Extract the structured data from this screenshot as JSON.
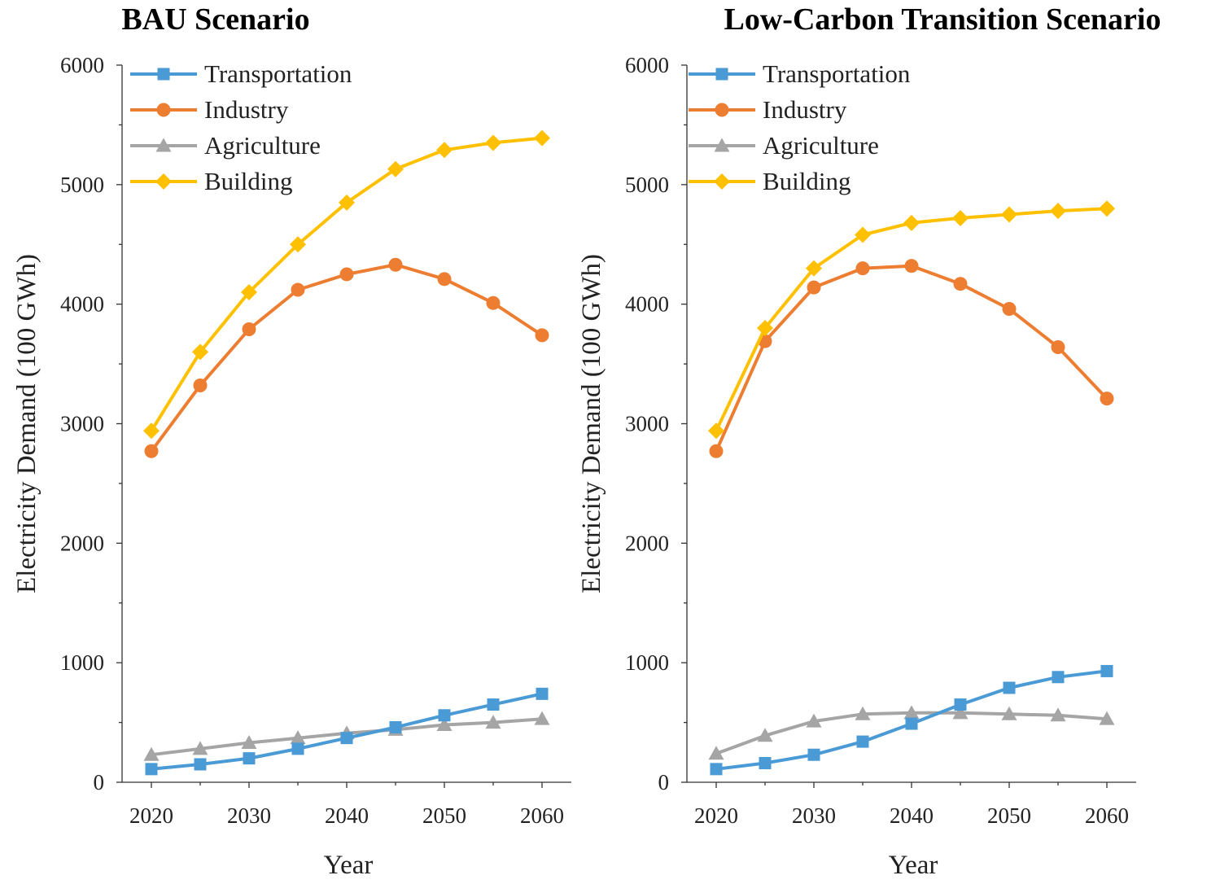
{
  "chart_data": [
    {
      "type": "line",
      "title": "BAU Scenario",
      "xlabel": "Year",
      "ylabel": "Electricity Demand (100 GWh)",
      "xlim": [
        2017,
        2063
      ],
      "ylim": [
        0,
        6000
      ],
      "xticks": [
        2020,
        2030,
        2040,
        2050,
        2060
      ],
      "yticks": [
        0,
        1000,
        2000,
        3000,
        4000,
        5000,
        6000
      ],
      "legend_position": "top-left",
      "x": [
        2020,
        2025,
        2030,
        2035,
        2040,
        2045,
        2050,
        2055,
        2060
      ],
      "series": [
        {
          "name": "Transportation",
          "color": "#4a9ad6",
          "marker": "square",
          "values": [
            110,
            150,
            200,
            280,
            370,
            460,
            560,
            650,
            740
          ]
        },
        {
          "name": "Industry",
          "color": "#ed7d31",
          "marker": "circle",
          "values": [
            2770,
            3320,
            3790,
            4120,
            4250,
            4330,
            4210,
            4010,
            3740
          ]
        },
        {
          "name": "Agriculture",
          "color": "#a5a5a5",
          "marker": "triangle",
          "values": [
            230,
            280,
            330,
            370,
            410,
            440,
            480,
            500,
            530
          ]
        },
        {
          "name": "Building",
          "color": "#ffc000",
          "marker": "diamond",
          "values": [
            2940,
            3600,
            4100,
            4500,
            4850,
            5130,
            5290,
            5350,
            5390
          ]
        }
      ]
    },
    {
      "type": "line",
      "title": "Low-Carbon Transition Scenario",
      "xlabel": "Year",
      "ylabel": "Electricity Demand (100 GWh)",
      "xlim": [
        2017,
        2063
      ],
      "ylim": [
        0,
        6000
      ],
      "xticks": [
        2020,
        2030,
        2040,
        2050,
        2060
      ],
      "yticks": [
        0,
        1000,
        2000,
        3000,
        4000,
        5000,
        6000
      ],
      "legend_position": "top-left",
      "x": [
        2020,
        2025,
        2030,
        2035,
        2040,
        2045,
        2050,
        2055,
        2060
      ],
      "series": [
        {
          "name": "Transportation",
          "color": "#4a9ad6",
          "marker": "square",
          "values": [
            110,
            160,
            230,
            340,
            490,
            650,
            790,
            880,
            930
          ]
        },
        {
          "name": "Industry",
          "color": "#ed7d31",
          "marker": "circle",
          "values": [
            2770,
            3690,
            4140,
            4300,
            4320,
            4170,
            3960,
            3640,
            3210
          ]
        },
        {
          "name": "Agriculture",
          "color": "#a5a5a5",
          "marker": "triangle",
          "values": [
            240,
            390,
            510,
            570,
            580,
            580,
            570,
            560,
            530
          ]
        },
        {
          "name": "Building",
          "color": "#ffc000",
          "marker": "diamond",
          "values": [
            2940,
            3800,
            4300,
            4580,
            4680,
            4720,
            4750,
            4780,
            4800
          ]
        }
      ]
    }
  ]
}
